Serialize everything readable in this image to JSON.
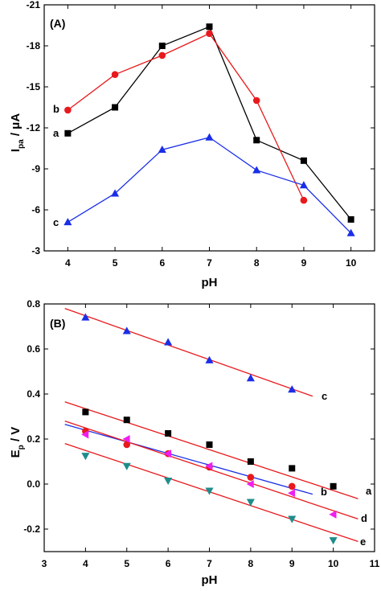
{
  "chart_data": [
    {
      "type": "line",
      "panel_label": "(A)",
      "xlabel": "pH",
      "ylabel_main": "I",
      "ylabel_sub": "pa",
      "ylabel_unit": " / μA",
      "xlim": [
        3.5,
        10.5
      ],
      "ylim": [
        -3,
        -21
      ],
      "xticks": [
        4,
        5,
        6,
        7,
        8,
        9,
        10
      ],
      "yticks": [
        -3,
        -6,
        -9,
        -12,
        -15,
        -18,
        -21
      ],
      "grid": false,
      "series": [
        {
          "name": "a",
          "color": "#000000",
          "marker": "square",
          "x": [
            4,
            5,
            6,
            7,
            8,
            9,
            10
          ],
          "y": [
            -11.6,
            -13.5,
            -18.0,
            -19.4,
            -11.1,
            -9.6,
            -5.3
          ]
        },
        {
          "name": "b",
          "color": "#e8191c",
          "marker": "circle",
          "x": [
            4,
            5,
            6,
            7,
            8,
            9
          ],
          "y": [
            -13.3,
            -15.9,
            -17.3,
            -18.9,
            -14.0,
            -6.7
          ]
        },
        {
          "name": "c",
          "color": "#1a2ee8",
          "marker": "triangle-up",
          "x": [
            4,
            5,
            6,
            7,
            8,
            9,
            10
          ],
          "y": [
            -5.1,
            -7.2,
            -10.4,
            -11.3,
            -8.9,
            -7.8,
            -4.3
          ]
        }
      ]
    },
    {
      "type": "scatter",
      "panel_label": "(B)",
      "xlabel": "pH",
      "ylabel_main": "E",
      "ylabel_sub": "p",
      "ylabel_unit": " / V",
      "xlim": [
        3,
        11
      ],
      "ylim": [
        -0.3,
        0.8
      ],
      "xticks": [
        3,
        4,
        5,
        6,
        7,
        8,
        9,
        10,
        11
      ],
      "yticks": [
        -0.2,
        0.0,
        0.2,
        0.4,
        0.6,
        0.8
      ],
      "ytick_labels": [
        "-0.2",
        "0.0",
        "0.2",
        "0.4",
        "0.6",
        "0.8"
      ],
      "grid": false,
      "series": [
        {
          "name": "c",
          "color": "#1a2ee8",
          "marker": "triangle-up",
          "line_color": "#e8191c",
          "x": [
            4,
            5,
            6,
            7,
            8,
            9
          ],
          "y": [
            0.74,
            0.68,
            0.63,
            0.55,
            0.47,
            0.42
          ],
          "fit_x": [
            3.5,
            9.5
          ],
          "fit_y": [
            0.78,
            0.39
          ]
        },
        {
          "name": "a",
          "color": "#000000",
          "marker": "square",
          "line_color": "#e8191c",
          "x": [
            4,
            5,
            6,
            7,
            8,
            9,
            10
          ],
          "y": [
            0.32,
            0.285,
            0.225,
            0.175,
            0.1,
            0.07,
            -0.01
          ],
          "fit_x": [
            3.5,
            10.6
          ],
          "fit_y": [
            0.365,
            -0.065
          ]
        },
        {
          "name": "b",
          "color": "#e8191c",
          "marker": "circle",
          "line_color": "#1a2ee8",
          "x": [
            4,
            5,
            6,
            7,
            8,
            9
          ],
          "y": [
            0.235,
            0.175,
            0.135,
            0.075,
            0.03,
            -0.01
          ],
          "fit_x": [
            3.5,
            9.5
          ],
          "fit_y": [
            0.265,
            -0.045
          ]
        },
        {
          "name": "d",
          "color": "#ee1fee",
          "marker": "triangle-left",
          "line_color": "#e8191c",
          "x": [
            4,
            5,
            6,
            7,
            8,
            9,
            10
          ],
          "y": [
            0.22,
            0.2,
            0.135,
            0.08,
            0.0,
            -0.04,
            -0.135
          ],
          "fit_x": [
            3.5,
            10.6
          ],
          "fit_y": [
            0.28,
            -0.155
          ]
        },
        {
          "name": "e",
          "color": "#1f8c8c",
          "marker": "triangle-down",
          "line_color": "#e8191c",
          "x": [
            4,
            5,
            6,
            7,
            8,
            9,
            10
          ],
          "y": [
            0.125,
            0.08,
            0.015,
            -0.03,
            -0.08,
            -0.155,
            -0.25
          ],
          "fit_x": [
            3.5,
            10.6
          ],
          "fit_y": [
            0.18,
            -0.255
          ]
        }
      ]
    }
  ]
}
